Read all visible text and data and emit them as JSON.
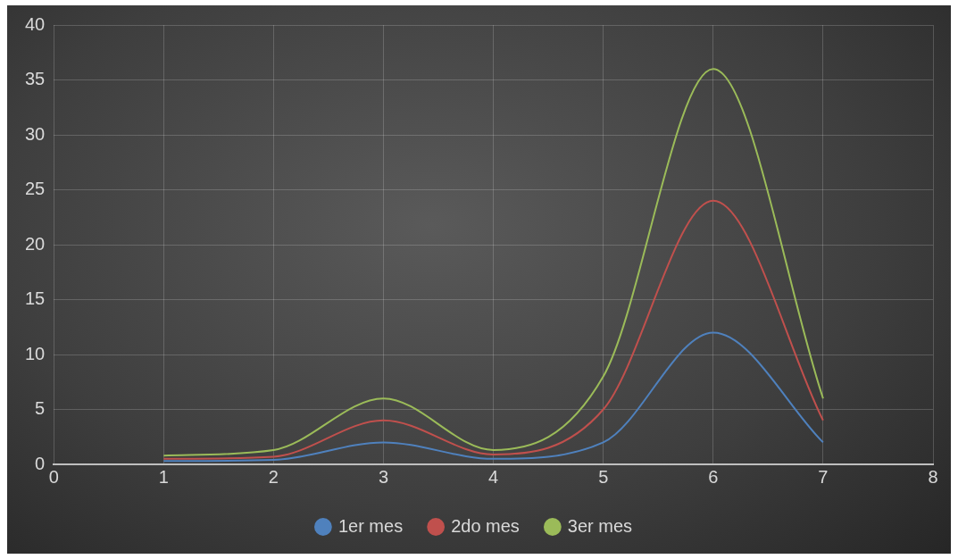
{
  "chart_data": {
    "type": "line",
    "x": [
      1,
      2,
      3,
      4,
      5,
      6,
      7
    ],
    "series": [
      {
        "name": "1er mes",
        "color": "#4f81bd",
        "values": [
          0.3,
          0.4,
          2,
          0.5,
          2,
          12,
          2
        ]
      },
      {
        "name": "2do mes",
        "color": "#c0504d",
        "values": [
          0.5,
          0.7,
          4,
          0.9,
          5,
          24,
          4
        ]
      },
      {
        "name": "3er mes",
        "color": "#9bbb59",
        "values": [
          0.8,
          1.3,
          6,
          1.3,
          8,
          36,
          6
        ]
      }
    ],
    "xlim": [
      0,
      8
    ],
    "xticks": [
      0,
      1,
      2,
      3,
      4,
      5,
      6,
      7,
      8
    ],
    "ylim": [
      0,
      40
    ],
    "yticks": [
      0,
      5,
      10,
      15,
      20,
      25,
      30,
      35,
      40
    ],
    "grid": true,
    "legend": "bottom",
    "marker": "none",
    "line_style": "solid"
  }
}
